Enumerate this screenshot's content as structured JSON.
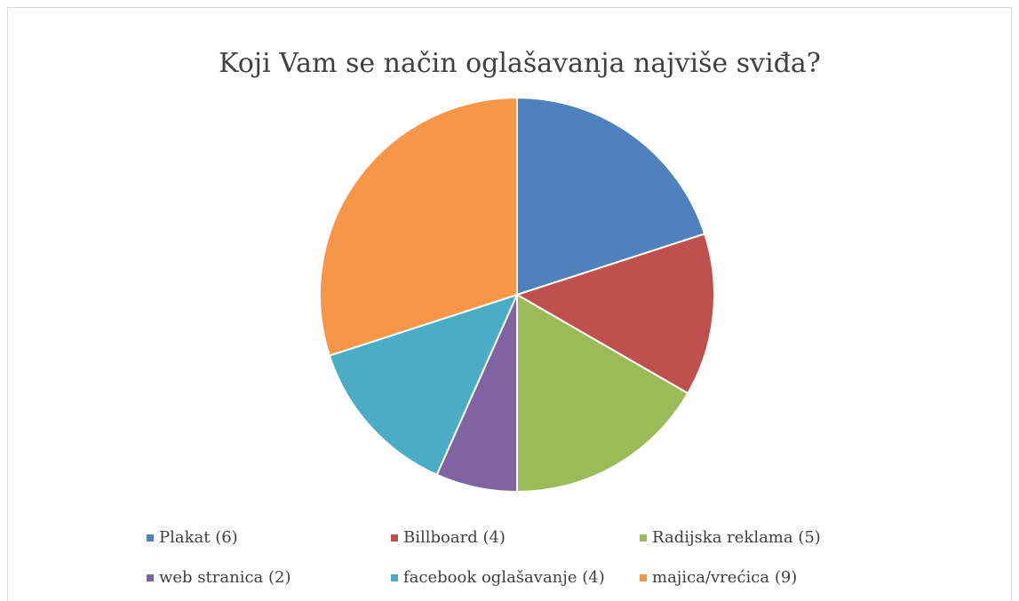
{
  "chart_data": {
    "type": "pie",
    "title": "Koji Vam se način oglašavanja najviše sviđa?",
    "categories": [
      "Plakat (6)",
      "Billboard (4)",
      "Radijska reklama (5)",
      "web stranica (2)",
      "facebook oglašavanje (4)",
      "majica/vrećica (9)"
    ],
    "values": [
      6,
      4,
      5,
      2,
      4,
      9
    ],
    "colors": [
      "#4f81bd",
      "#c0504d",
      "#9bbb59",
      "#8064a2",
      "#4bacc6",
      "#f79646"
    ]
  }
}
